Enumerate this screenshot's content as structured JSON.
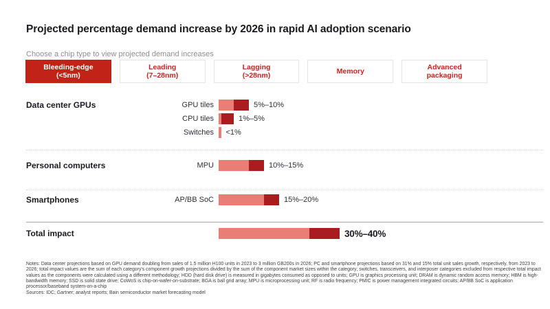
{
  "header": {
    "title": "Projected percentage demand increase by 2026 in rapid AI adoption scenario",
    "subtitle": "Choose a chip type to view projected demand increases"
  },
  "tabs": [
    {
      "label": "Bleeding-edge",
      "sublabel": "(<5nm)",
      "active": true
    },
    {
      "label": "Leading",
      "sublabel": "(7–28nm)",
      "active": false
    },
    {
      "label": "Lagging",
      "sublabel": "(>28nm)",
      "active": false
    },
    {
      "label": "Memory",
      "sublabel": "",
      "active": false
    },
    {
      "label": "Advanced",
      "sublabel": "packaging",
      "active": false
    }
  ],
  "chart_data": {
    "type": "bar",
    "unit": "percent demand increase by 2026",
    "xlim": [
      0,
      42
    ],
    "legend_position": "none",
    "grid": false,
    "colors": {
      "range_low": "#e97e74",
      "range_high": "#aa1d1f",
      "active_tab": "#c12417"
    },
    "groups": [
      {
        "category": "Data center GPUs",
        "divider": "none",
        "emphasis": false,
        "rows": [
          {
            "label": "GPU tiles",
            "min": 5,
            "max": 10,
            "value_label": "5%–10%"
          },
          {
            "label": "CPU tiles",
            "min": 1,
            "max": 5,
            "value_label": "1%–5%"
          },
          {
            "label": "Switches",
            "min": 0.8,
            "max": 0.8,
            "value_label": "<1%"
          }
        ]
      },
      {
        "category": "Personal computers",
        "divider": "dotted",
        "emphasis": false,
        "rows": [
          {
            "label": "MPU",
            "min": 10,
            "max": 15,
            "value_label": "10%–15%"
          }
        ]
      },
      {
        "category": "Smartphones",
        "divider": "dotted",
        "emphasis": false,
        "rows": [
          {
            "label": "AP/BB SoC",
            "min": 15,
            "max": 20,
            "value_label": "15%–20%"
          }
        ]
      },
      {
        "category": "Total impact",
        "divider": "solid",
        "emphasis": true,
        "rows": [
          {
            "label": "",
            "min": 30,
            "max": 40,
            "value_label": "30%–40%"
          }
        ]
      }
    ]
  },
  "footer": {
    "notes": "Notes: Data center projections based on GPU demand doubling from sales of 1.5 million H100 units in 2023 to 3 million GB200s in 2026; PC and smartphone projections based on 31% and 15% total unit sales growth, respectively, from 2023 to 2026; total impact values are the sum of each category's component growth projections divided by the sum of the component market sizes within the category; switches, transceivers, and interposer categories excluded from respective total impact values as the components were calculated using a different methodology; HDD (hard disk drive) is measured in gigabytes consumed as opposed to units; GPU is graphics processing unit; DRAM is dynamic random access memory; HBM is high-bandwidth memory; SSD is solid state drive; CoWoS is chip-on-wafer-on-substrate; BGA is ball grid array; MPU is microprocessing unit; RF is radio frequency; PMIC is power management integrated circuits; AP/BB SoC is application processor/baseband system-on-a-chip",
    "sources": "Sources: IDC; Gartner; analyst reports; Bain semiconductor market forecasting model"
  }
}
